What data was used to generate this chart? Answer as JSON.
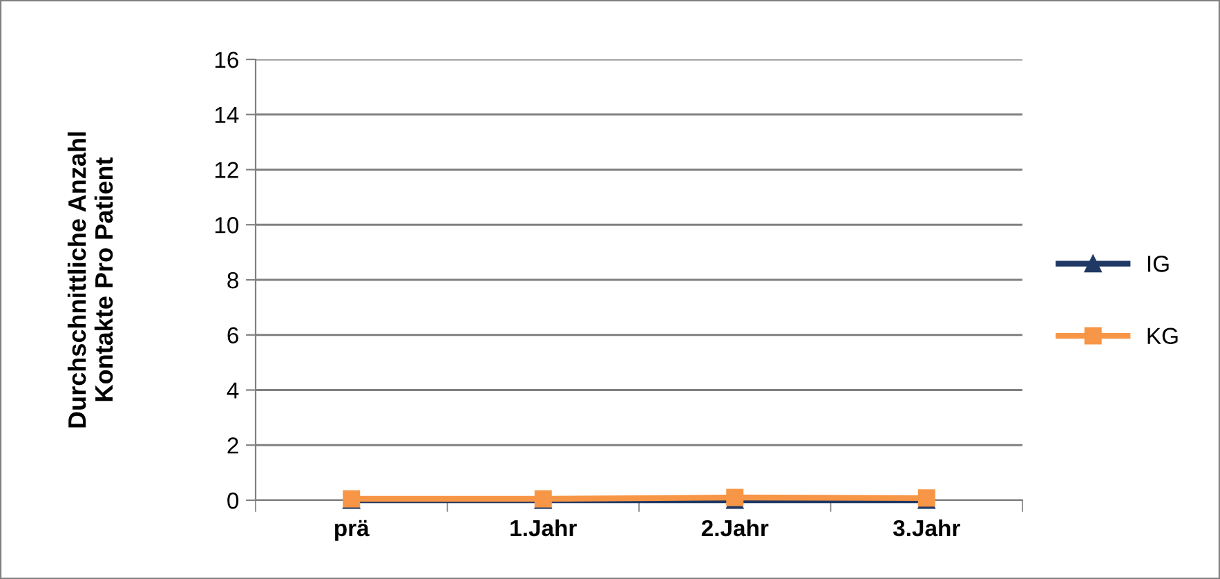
{
  "chart_data": {
    "type": "line",
    "ylabel": "Durchschnittliche Anzahl\nKontakte Pro Patient",
    "categories": [
      "prä",
      "1.Jahr",
      "2.Jahr",
      "3.Jahr"
    ],
    "series": [
      {
        "name": "IG",
        "color": "#1f3864",
        "values": [
          0,
          0,
          0,
          0
        ],
        "marker": "triangle"
      },
      {
        "name": "KG",
        "color": "#f79646",
        "values": [
          0.05,
          0.05,
          0.1,
          0.08
        ],
        "marker": "square"
      }
    ],
    "ylim": [
      0,
      16
    ],
    "yticks": [
      0,
      2,
      4,
      6,
      8,
      10,
      12,
      14,
      16
    ],
    "grid": "y",
    "legend": "right",
    "line_style": "solid"
  }
}
